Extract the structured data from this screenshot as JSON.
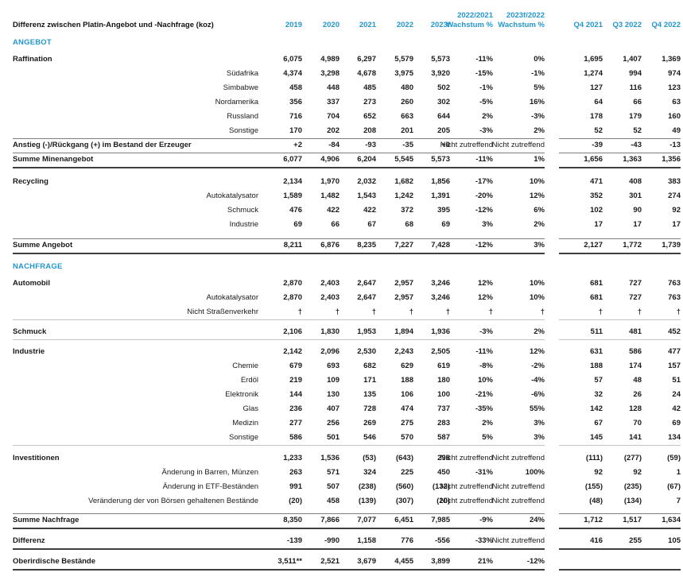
{
  "title": "Differenz zwischen Platin-Angebot und -Nachfrage (koz)",
  "colors": {
    "accent": "#2397CE",
    "rule_thin": "#7d7d7d",
    "rule_light": "#c3c3c3",
    "rule_thick": "#3f3f3f",
    "text": "#1a1a1a"
  },
  "header": {
    "years": [
      "2019",
      "2020",
      "2021",
      "2022",
      "2023f"
    ],
    "growth": [
      {
        "line1": "2022/2021",
        "line2": "Wachstum %"
      },
      {
        "line1": "2023f/2022",
        "line2": "Wachstum %"
      }
    ],
    "quarters": [
      "Q4 2021",
      "Q3 2022",
      "Q4 2022"
    ]
  },
  "table": {
    "rows": [
      {
        "type": "spacer",
        "h": 8
      },
      {
        "type": "section",
        "label": "ANGEBOT"
      },
      {
        "type": "spacer",
        "h": 4
      },
      {
        "type": "data",
        "label": "Raffination",
        "bold": true,
        "values": [
          "6,075",
          "4,989",
          "6,297",
          "5,579",
          "5,573",
          "-11%",
          "0%",
          "1,695",
          "1,407",
          "1,369"
        ]
      },
      {
        "type": "data",
        "label": "Südafrika",
        "bold": false,
        "values": [
          "4,374",
          "3,298",
          "4,678",
          "3,975",
          "3,920",
          "-15%",
          "-1%",
          "1,274",
          "994",
          "974"
        ]
      },
      {
        "type": "data",
        "label": "Simbabwe",
        "bold": false,
        "values": [
          "458",
          "448",
          "485",
          "480",
          "502",
          "-1%",
          "5%",
          "127",
          "116",
          "123"
        ]
      },
      {
        "type": "data",
        "label": "Nordamerika",
        "bold": false,
        "values": [
          "356",
          "337",
          "273",
          "260",
          "302",
          "-5%",
          "16%",
          "64",
          "66",
          "63"
        ]
      },
      {
        "type": "data",
        "label": "Russland",
        "bold": false,
        "values": [
          "716",
          "704",
          "652",
          "663",
          "644",
          "2%",
          "-3%",
          "178",
          "179",
          "160"
        ]
      },
      {
        "type": "data",
        "label": "Sonstige",
        "bold": false,
        "values": [
          "170",
          "202",
          "208",
          "201",
          "205",
          "-3%",
          "2%",
          "52",
          "52",
          "49"
        ]
      },
      {
        "type": "rule",
        "style": "thin"
      },
      {
        "type": "data",
        "label": "Anstieg (-)/Rückgang (+) im Bestand der Erzeuger",
        "bold": true,
        "values": [
          "+2",
          "-84",
          "-93",
          "-35",
          "+0",
          "Nicht zutreffend",
          "Nicht zutreffend",
          "-39",
          "-43",
          "-13"
        ]
      },
      {
        "type": "rule",
        "style": "thin"
      },
      {
        "type": "data",
        "label": "Summe Minenangebot",
        "bold": true,
        "values": [
          "6,077",
          "4,906",
          "6,204",
          "5,545",
          "5,573",
          "-11%",
          "1%",
          "1,656",
          "1,363",
          "1,356"
        ]
      },
      {
        "type": "rule",
        "style": "thick"
      },
      {
        "type": "spacer",
        "h": 10
      },
      {
        "type": "data",
        "label": "Recycling",
        "bold": true,
        "values": [
          "2,134",
          "1,970",
          "2,032",
          "1,682",
          "1,856",
          "-17%",
          "10%",
          "471",
          "408",
          "383"
        ]
      },
      {
        "type": "data",
        "label": "Autokatalysator",
        "bold": false,
        "values": [
          "1,589",
          "1,482",
          "1,543",
          "1,242",
          "1,391",
          "-20%",
          "12%",
          "352",
          "301",
          "274"
        ]
      },
      {
        "type": "data",
        "label": "Schmuck",
        "bold": false,
        "values": [
          "476",
          "422",
          "422",
          "372",
          "395",
          "-12%",
          "6%",
          "102",
          "90",
          "92"
        ]
      },
      {
        "type": "data",
        "label": "Industrie",
        "bold": false,
        "values": [
          "69",
          "66",
          "67",
          "68",
          "69",
          "3%",
          "2%",
          "17",
          "17",
          "17"
        ]
      },
      {
        "type": "spacer",
        "h": 8
      },
      {
        "type": "rule",
        "style": "thin"
      },
      {
        "type": "data",
        "label": "Summe Angebot",
        "bold": true,
        "values": [
          "8,211",
          "6,876",
          "8,235",
          "7,227",
          "7,428",
          "-12%",
          "3%",
          "2,127",
          "1,772",
          "1,739"
        ]
      },
      {
        "type": "rule",
        "style": "thick"
      },
      {
        "type": "spacer",
        "h": 10
      },
      {
        "type": "section",
        "label": "NACHFRAGE"
      },
      {
        "type": "spacer",
        "h": 4
      },
      {
        "type": "data",
        "label": "Automobil",
        "bold": true,
        "values": [
          "2,870",
          "2,403",
          "2,647",
          "2,957",
          "3,246",
          "12%",
          "10%",
          "681",
          "727",
          "763"
        ]
      },
      {
        "type": "data",
        "label": "Autokatalysator",
        "bold": false,
        "values": [
          "2,870",
          "2,403",
          "2,647",
          "2,957",
          "3,246",
          "12%",
          "10%",
          "681",
          "727",
          "763"
        ]
      },
      {
        "type": "data",
        "label": "Nicht Straßenverkehr",
        "bold": false,
        "values": [
          "†",
          "†",
          "†",
          "†",
          "†",
          "†",
          "†",
          "†",
          "†",
          "†"
        ]
      },
      {
        "type": "rule",
        "style": "light"
      },
      {
        "type": "spacer",
        "h": 7
      },
      {
        "type": "data",
        "label": "Schmuck",
        "bold": true,
        "values": [
          "2,106",
          "1,830",
          "1,953",
          "1,894",
          "1,936",
          "-3%",
          "2%",
          "511",
          "481",
          "452"
        ]
      },
      {
        "type": "rule",
        "style": "light"
      },
      {
        "type": "spacer",
        "h": 7
      },
      {
        "type": "data",
        "label": "Industrie",
        "bold": true,
        "values": [
          "2,142",
          "2,096",
          "2,530",
          "2,243",
          "2,505",
          "-11%",
          "12%",
          "631",
          "586",
          "477"
        ]
      },
      {
        "type": "data",
        "label": "Chemie",
        "bold": false,
        "values": [
          "679",
          "693",
          "682",
          "629",
          "619",
          "-8%",
          "-2%",
          "188",
          "174",
          "157"
        ]
      },
      {
        "type": "data",
        "label": "Erdöl",
        "bold": false,
        "values": [
          "219",
          "109",
          "171",
          "188",
          "180",
          "10%",
          "-4%",
          "57",
          "48",
          "51"
        ]
      },
      {
        "type": "data",
        "label": "Elektronik",
        "bold": false,
        "values": [
          "144",
          "130",
          "135",
          "106",
          "100",
          "-21%",
          "-6%",
          "32",
          "26",
          "24"
        ]
      },
      {
        "type": "data",
        "label": "Glas",
        "bold": false,
        "values": [
          "236",
          "407",
          "728",
          "474",
          "737",
          "-35%",
          "55%",
          "142",
          "128",
          "42"
        ]
      },
      {
        "type": "data",
        "label": "Medizin",
        "bold": false,
        "values": [
          "277",
          "256",
          "269",
          "275",
          "283",
          "2%",
          "3%",
          "67",
          "70",
          "69"
        ]
      },
      {
        "type": "data",
        "label": "Sonstige",
        "bold": false,
        "values": [
          "586",
          "501",
          "546",
          "570",
          "587",
          "5%",
          "3%",
          "145",
          "141",
          "134"
        ]
      },
      {
        "type": "rule",
        "style": "light"
      },
      {
        "type": "spacer",
        "h": 8
      },
      {
        "type": "data",
        "label": "Investitionen",
        "bold": true,
        "values": [
          "1,233",
          "1,536",
          "(53)",
          "(643)",
          "298",
          "Nicht zutreffend",
          "Nicht zutreffend",
          "(111)",
          "(277)",
          "(59)"
        ]
      },
      {
        "type": "data",
        "label": "Änderung in Barren, Münzen",
        "bold": false,
        "values": [
          "263",
          "571",
          "324",
          "225",
          "450",
          "-31%",
          "100%",
          "92",
          "92",
          "1"
        ]
      },
      {
        "type": "data",
        "label": "Änderung in ETF-Beständen",
        "bold": false,
        "values": [
          "991",
          "507",
          "(238)",
          "(560)",
          "(132)",
          "Nicht zutreffend",
          "Nicht zutreffend",
          "(155)",
          "(235)",
          "(67)"
        ]
      },
      {
        "type": "data",
        "label": "Veränderung der von Börsen gehaltenen Bestände",
        "bold": false,
        "values": [
          "(20)",
          "458",
          "(139)",
          "(307)",
          "(20)",
          "Nicht zutreffend",
          "Nicht zutreffend",
          "(48)",
          "(134)",
          "7"
        ]
      },
      {
        "type": "spacer",
        "h": 6
      },
      {
        "type": "rule",
        "style": "thin"
      },
      {
        "type": "data",
        "label": "Summe Nachfrage",
        "bold": true,
        "values": [
          "8,350",
          "7,866",
          "7,077",
          "6,451",
          "7,985",
          "-9%",
          "24%",
          "1,712",
          "1,517",
          "1,634"
        ]
      },
      {
        "type": "rule",
        "style": "thick"
      },
      {
        "type": "spacer",
        "h": 8
      },
      {
        "type": "data",
        "label": "Differenz",
        "bold": true,
        "values": [
          "-139",
          "-990",
          "1,158",
          "776",
          "-556",
          "-33%",
          "Nicht zutreffend",
          "416",
          "255",
          "105"
        ]
      },
      {
        "type": "rule",
        "style": "thick"
      },
      {
        "type": "spacer",
        "h": 8
      },
      {
        "type": "data",
        "label": "Oberirdische Bestände",
        "bold": true,
        "values": [
          "3,511**",
          "2,521",
          "3,679",
          "4,455",
          "3,899",
          "21%",
          "-12%",
          "",
          "",
          ""
        ]
      },
      {
        "type": "rule",
        "style": "thick"
      }
    ]
  }
}
